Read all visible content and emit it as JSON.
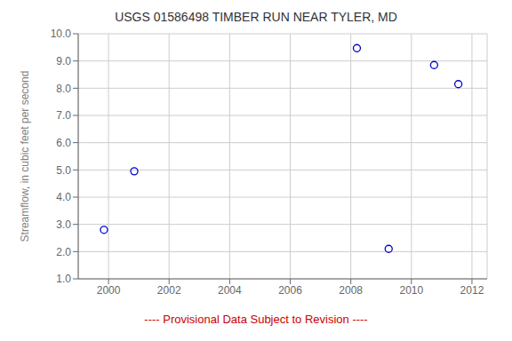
{
  "chart_data": {
    "type": "scatter",
    "title": "USGS 01586498 TIMBER RUN NEAR TYLER, MD",
    "ylabel": "Streamflow, in cubic feet per second",
    "x": [
      1999.85,
      2000.85,
      2008.2,
      2009.25,
      2010.75,
      2011.55
    ],
    "values": [
      2.8,
      4.95,
      9.47,
      2.1,
      8.85,
      8.15
    ],
    "color": "#0000CC",
    "marker": "circle",
    "xlim": [
      1999.0,
      2012.5
    ],
    "ylim": [
      1.0,
      10.0
    ],
    "xticks": [
      2000,
      2002,
      2004,
      2006,
      2008,
      2010,
      2012
    ],
    "yticks": [
      {
        "value": 1.0,
        "label": "1.0"
      },
      {
        "value": 2.0,
        "label": "2.0"
      },
      {
        "value": 3.0,
        "label": "3.0"
      },
      {
        "value": 4.0,
        "label": "4.0"
      },
      {
        "value": 5.0,
        "label": "5.0"
      },
      {
        "value": 6.0,
        "label": "6.0"
      },
      {
        "value": 7.0,
        "label": "7.0"
      },
      {
        "value": 8.0,
        "label": "8.0"
      },
      {
        "value": 9.0,
        "label": "9.0"
      },
      {
        "value": 10.0,
        "label": "10.0"
      }
    ],
    "grid": true,
    "annotations": [
      {
        "text": "---- Provisional Data Subject to Revision ----",
        "color": "#cc0000"
      }
    ]
  }
}
